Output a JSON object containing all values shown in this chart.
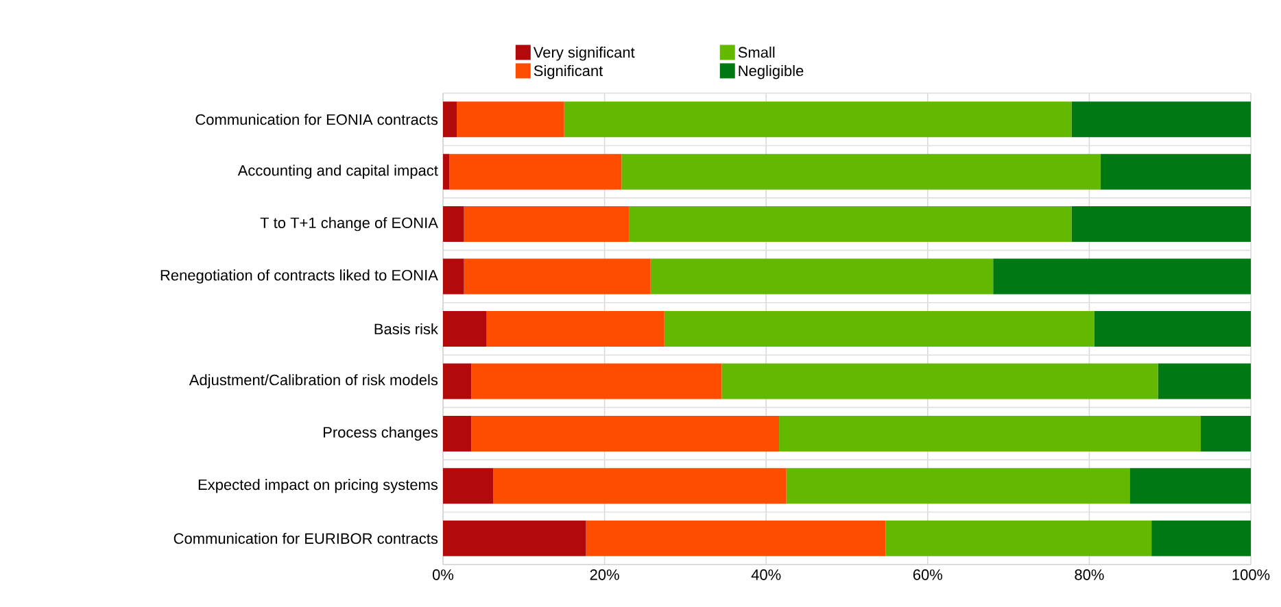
{
  "chart_data": {
    "type": "bar",
    "orientation": "horizontal",
    "stacked": true,
    "categories": [
      "Communication for EONIA contracts",
      "Accounting and capital impact",
      "T to T+1 change of EONIA",
      "Renegotiation of contracts liked to EONIA",
      "Basis risk",
      "Adjustment/Calibration of risk models",
      "Process changes",
      "Expected impact on pricing systems",
      "Communication for EURIBOR contracts"
    ],
    "series": [
      {
        "name": "Very significant",
        "color": "#b20a0a",
        "values": [
          1.7,
          0.8,
          2.6,
          2.6,
          5.4,
          3.5,
          3.5,
          6.2,
          17.7
        ]
      },
      {
        "name": "Significant",
        "color": "#ff4d00",
        "values": [
          13.3,
          21.3,
          20.4,
          23.1,
          22.0,
          31.0,
          38.1,
          36.3,
          37.1
        ]
      },
      {
        "name": "Small",
        "color": "#63b800",
        "values": [
          62.8,
          59.3,
          54.8,
          42.4,
          53.2,
          54.0,
          52.2,
          42.5,
          32.9
        ]
      },
      {
        "name": "Negligible",
        "color": "#007814",
        "values": [
          22.2,
          18.6,
          22.2,
          31.9,
          19.4,
          11.5,
          6.2,
          15.0,
          12.3
        ]
      }
    ],
    "xlim": [
      0,
      100
    ],
    "xticks": [
      {
        "value": 0,
        "label": "0%"
      },
      {
        "value": 20,
        "label": "20%"
      },
      {
        "value": 40,
        "label": "40%"
      },
      {
        "value": 60,
        "label": "60%"
      },
      {
        "value": 80,
        "label": "80%"
      },
      {
        "value": 100,
        "label": "100%"
      }
    ],
    "grid": true,
    "legend": "top"
  }
}
